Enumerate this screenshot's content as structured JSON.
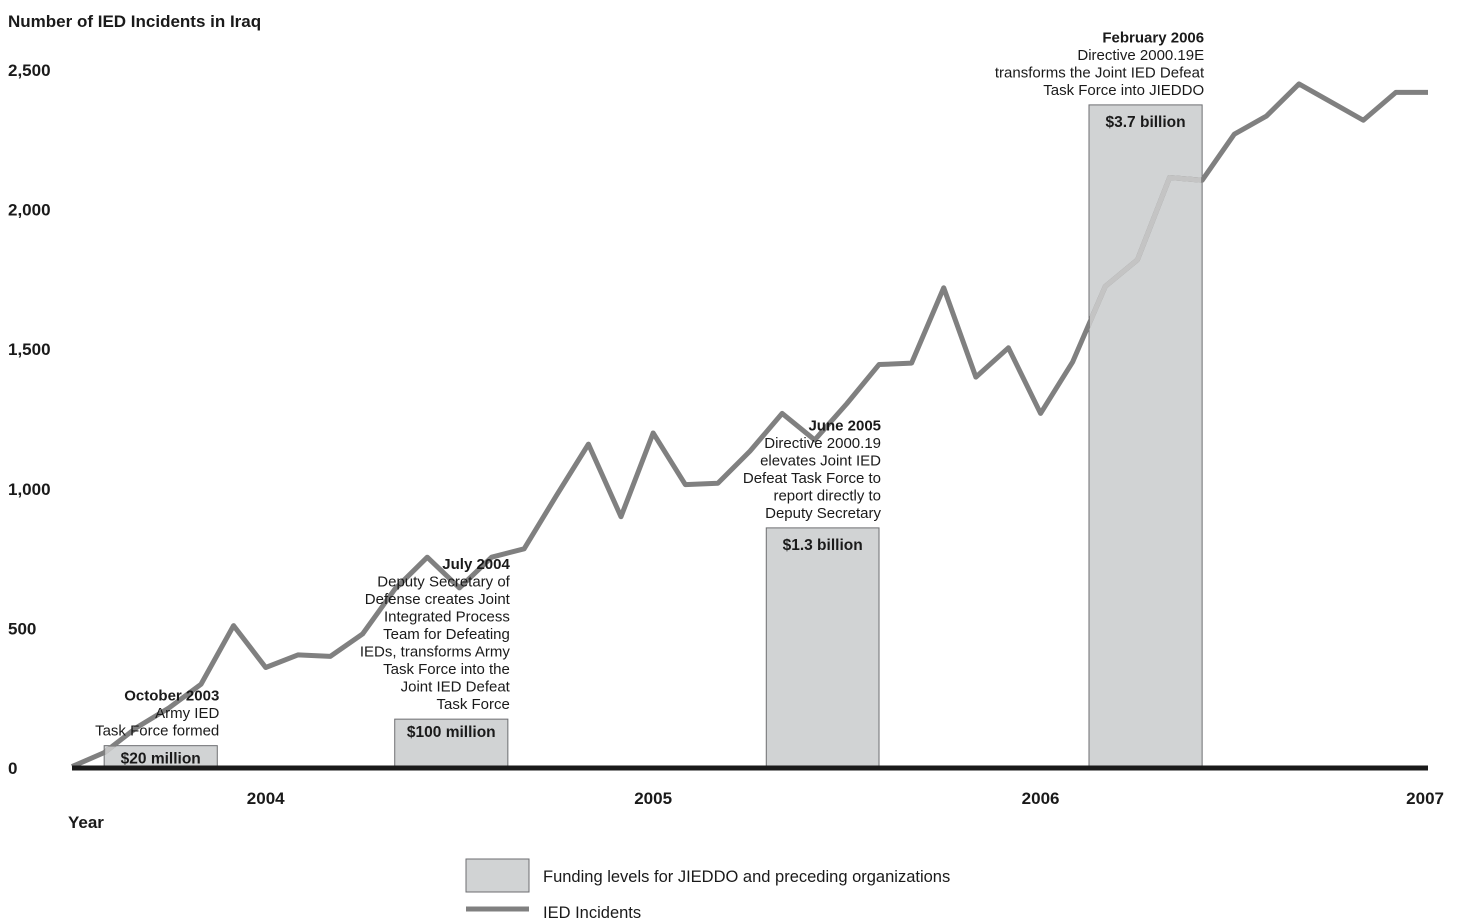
{
  "chart_data": {
    "type": "bar+line",
    "title": "Number of IED Incidents in Iraq",
    "xlabel": "Year",
    "ylabel": "",
    "ylim": [
      0,
      2500
    ],
    "yticks": [
      "0",
      "500",
      "1,000",
      "1,500",
      "2,000",
      "2,500"
    ],
    "xticks": [
      "2004",
      "2005",
      "2006",
      "2007"
    ],
    "grid": false,
    "legend_position": "bottom-center",
    "line_series": {
      "name": "IED Incidents",
      "color": "#808080",
      "x": [
        2003.5,
        2003.583,
        2003.667,
        2003.75,
        2003.833,
        2003.917,
        2004.0,
        2004.083,
        2004.167,
        2004.25,
        2004.333,
        2004.417,
        2004.5,
        2004.583,
        2004.667,
        2004.75,
        2004.833,
        2004.917,
        2005.0,
        2005.083,
        2005.167,
        2005.25,
        2005.333,
        2005.417,
        2005.5,
        2005.583,
        2005.667,
        2005.75,
        2005.833,
        2005.917,
        2006.0,
        2006.083,
        2006.167,
        2006.25,
        2006.333,
        2006.417,
        2006.5,
        2006.583,
        2006.667,
        2006.75,
        2006.833,
        2006.917,
        2007.0
      ],
      "y": [
        5,
        55,
        145,
        215,
        300,
        510,
        360,
        405,
        400,
        480,
        640,
        755,
        645,
        755,
        785,
        975,
        1160,
        900,
        1200,
        1015,
        1020,
        1135,
        1270,
        1175,
        1305,
        1445,
        1450,
        1720,
        1400,
        1505,
        1270,
        1455,
        1725,
        1820,
        2115,
        2105,
        2270,
        2335,
        2450,
        2385,
        2320,
        2420,
        2420
      ]
    },
    "line_points_count_note": "",
    "funding_bars": [
      {
        "label": "$20 million",
        "start": 2003.583,
        "end": 2003.875,
        "height": 80
      },
      {
        "label": "$100 million",
        "start": 2004.333,
        "end": 2004.625,
        "height": 175
      },
      {
        "label": "$1.3 billion",
        "start": 2005.292,
        "end": 2005.583,
        "height": 860
      },
      {
        "label": "$3.7 billion",
        "start": 2006.125,
        "end": 2006.417,
        "height": 2375
      }
    ],
    "annotations": [
      {
        "title": "October 2003",
        "lines": [
          "Army IED",
          "Task Force formed"
        ]
      },
      {
        "title": "July 2004",
        "lines": [
          "Deputy Secretary of",
          "Defense creates Joint",
          "Integrated Process",
          "Team for Defeating",
          "IEDs, transforms Army",
          "Task Force into the",
          "Joint IED Defeat ",
          "Task Force"
        ]
      },
      {
        "title": "June 2005",
        "lines": [
          "Directive 2000.19",
          "elevates Joint IED",
          "Defeat Task Force to",
          "report directly to",
          "Deputy Secretary"
        ]
      },
      {
        "title": "February 2006",
        "lines": [
          "Directive 2000.19E",
          "transforms the Joint IED Defeat",
          "Task Force into JIEDDO"
        ]
      }
    ],
    "legend": [
      {
        "label": "Funding levels for JIEDDO and preceding organizations",
        "kind": "box",
        "color": "#d1d3d4"
      },
      {
        "label": "IED Incidents",
        "kind": "line",
        "color": "#808080"
      }
    ],
    "colors": {
      "bar_fill": "#d1d3d4",
      "bar_stroke": "#6d6e71",
      "line": "#808080",
      "line_behind_bar": "#c4c4c4",
      "axis": "#1a1a1a"
    }
  }
}
